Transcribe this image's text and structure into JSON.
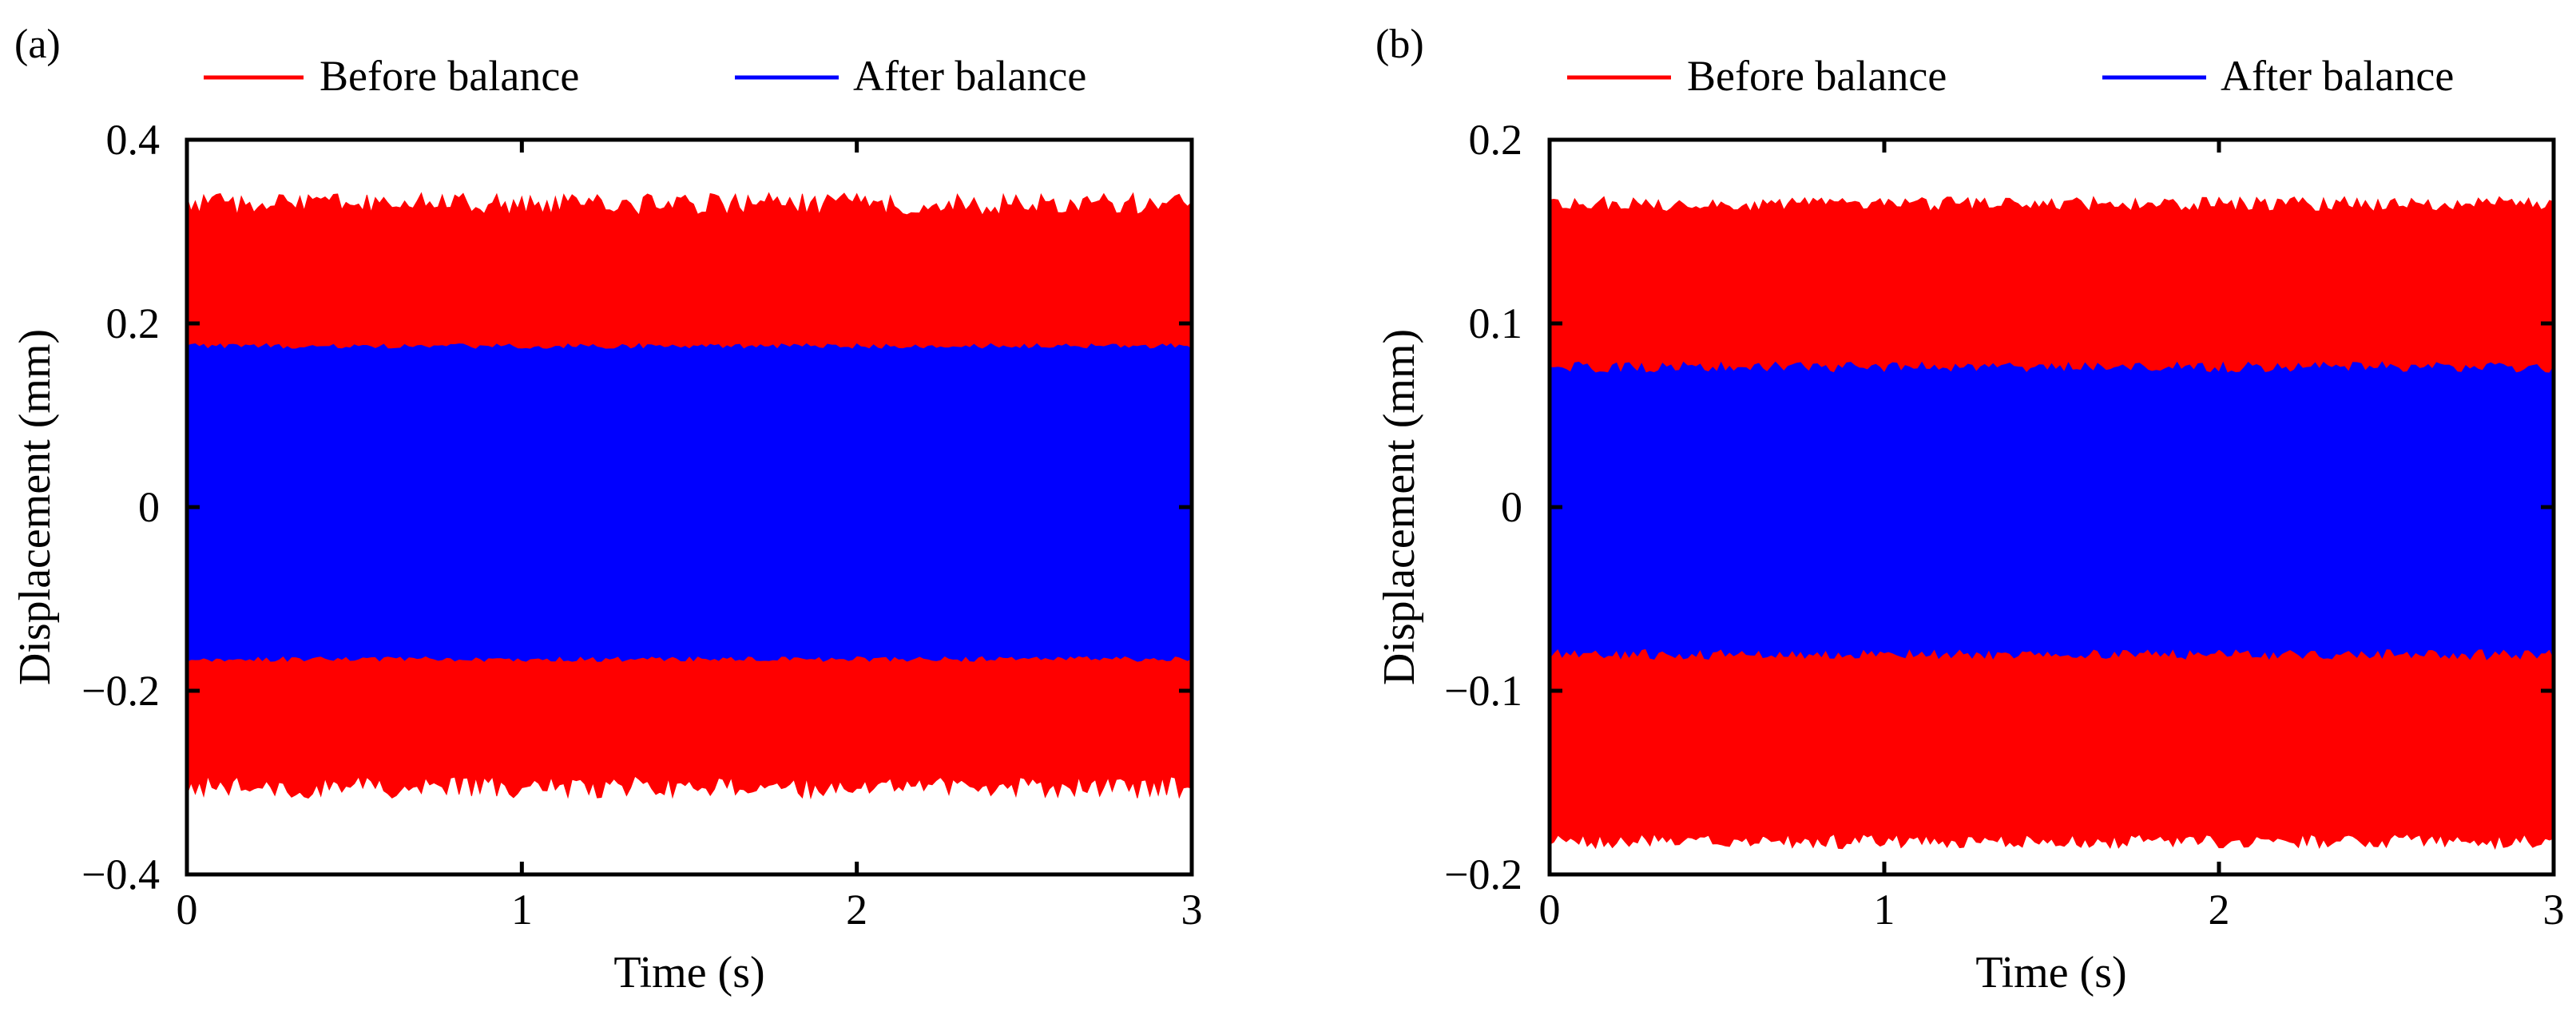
{
  "chart_data": [
    {
      "type": "line",
      "panel_label": "(a)",
      "xlabel": "Time (s)",
      "ylabel": "Displacement (mm)",
      "xlim": [
        0,
        3
      ],
      "ylim": [
        -0.4,
        0.4
      ],
      "xticks": [
        0,
        1,
        2,
        3
      ],
      "xtick_labels": [
        "0",
        "1",
        "2",
        "3"
      ],
      "yticks": [
        -0.4,
        -0.2,
        0,
        0.2,
        0.4
      ],
      "ytick_labels": [
        "−0.4",
        "−0.2",
        "0",
        "0.2",
        "0.4"
      ],
      "legend_position": "top",
      "series": [
        {
          "name": "Before balance",
          "color": "#ff0000",
          "upper": 0.33,
          "lower": -0.305,
          "noise": 0.012
        },
        {
          "name": "After balance",
          "color": "#0000ff",
          "upper": 0.175,
          "lower": -0.165,
          "noise": 0.003
        }
      ]
    },
    {
      "type": "line",
      "panel_label": "(b)",
      "xlabel": "Time (s)",
      "ylabel": "Displacement (mm)",
      "xlim": [
        0,
        3
      ],
      "ylim": [
        -0.2,
        0.2
      ],
      "xticks": [
        0,
        1,
        2,
        3
      ],
      "xtick_labels": [
        "0",
        "1",
        "2",
        "3"
      ],
      "yticks": [
        -0.2,
        -0.1,
        0,
        0.1,
        0.2
      ],
      "ytick_labels": [
        "−0.2",
        "−0.1",
        "0",
        "0.1",
        "0.2"
      ],
      "legend_position": "top",
      "series": [
        {
          "name": "Before balance",
          "color": "#ff0000",
          "upper": 0.165,
          "lower": -0.182,
          "noise": 0.004
        },
        {
          "name": "After balance",
          "color": "#0000ff",
          "upper": 0.076,
          "lower": -0.08,
          "noise": 0.003
        }
      ]
    }
  ]
}
